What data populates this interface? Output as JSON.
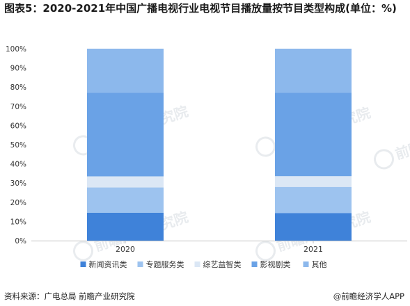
{
  "title": "图表5：2020-2021年中国广播电视行业电视节目播放量按节目类型构成(单位：%)",
  "source": "资料来源：广电总局 前瞻产业研究院",
  "brand": "@前瞻经济学人APP",
  "watermark": {
    "text": "前瞻产业研究院"
  },
  "colors": {
    "新闻资讯类": "#3f82d9",
    "专题服务类": "#9dc3ef",
    "综艺益智类": "#dbe7f5",
    "影视剧类": "#6aa2e6",
    "其他": "#8cb8ec"
  },
  "chart_data": {
    "type": "bar",
    "stacked": true,
    "categories": [
      "2020",
      "2021"
    ],
    "ylim": [
      0,
      100
    ],
    "yticks": [
      "0%",
      "10%",
      "20%",
      "30%",
      "40%",
      "50%",
      "60%",
      "70%",
      "80%",
      "90%",
      "100%"
    ],
    "legend_position": "bottom",
    "series": [
      {
        "name": "新闻资讯类",
        "values": [
          14.5,
          14.4
        ]
      },
      {
        "name": "专题服务类",
        "values": [
          13.2,
          13.6
        ]
      },
      {
        "name": "综艺益智类",
        "values": [
          5.8,
          5.6
        ]
      },
      {
        "name": "影视剧类",
        "values": [
          43.5,
          43.4
        ]
      },
      {
        "name": "其他",
        "values": [
          23.0,
          23.0
        ]
      }
    ]
  }
}
